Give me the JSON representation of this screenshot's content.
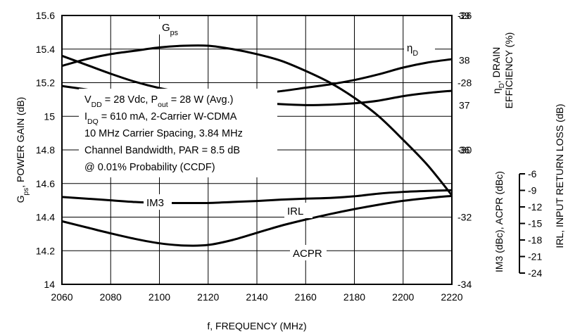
{
  "chart_data": {
    "type": "line",
    "x": [
      2060,
      2070,
      2080,
      2090,
      2100,
      2110,
      2120,
      2130,
      2140,
      2150,
      2160,
      2170,
      2180,
      2190,
      2200,
      2210,
      2220
    ],
    "xlabel": "f, FREQUENCY (MHz)",
    "xlim": [
      2060,
      2220
    ],
    "x_ticks": [
      "2060",
      "2080",
      "2100",
      "2120",
      "2140",
      "2160",
      "2180",
      "2200",
      "2220"
    ],
    "axes": {
      "left": {
        "label_parts": [
          {
            "t": "G",
            "s": "n"
          },
          {
            "t": "ps",
            "s": "sub"
          },
          {
            "t": ", POWER GAIN (dB)",
            "s": "n"
          }
        ],
        "range": [
          14,
          15.6
        ],
        "ticks": [
          "14",
          "14.2",
          "14.4",
          "14.6",
          "14.8",
          "15",
          "15.2",
          "15.4",
          "15.6"
        ]
      },
      "right_eta": {
        "label_line1_parts": [
          {
            "t": "η",
            "s": "n"
          },
          {
            "t": "D",
            "s": "sub"
          },
          {
            "t": ", DRAIN",
            "s": "n"
          }
        ],
        "label_line2": "EFFICIENCY (%)",
        "range": [
          33,
          39
        ],
        "ticks": [
          "36",
          "37",
          "38",
          "39"
        ]
      },
      "right_im3": {
        "label": "IM3 (dBc), ACPR (dBc)",
        "range": [
          -34,
          -26
        ],
        "ticks": [
          "-34",
          "-32",
          "-30",
          "-28",
          "-26"
        ]
      },
      "right_irl": {
        "label": "IRL, INPUT RETURN LOSS (dB)",
        "range": [
          -24,
          -6
        ],
        "ticks": [
          "-24",
          "-21",
          "-18",
          "-15",
          "-12",
          "-9",
          "-6"
        ]
      }
    },
    "series": [
      {
        "name": "Gps",
        "label_parts": [
          {
            "t": "G",
            "s": "n"
          },
          {
            "t": "ps",
            "s": "sub"
          }
        ],
        "axis": "left",
        "values": [
          15.3,
          15.34,
          15.37,
          15.39,
          15.41,
          15.42,
          15.42,
          15.4,
          15.37,
          15.33,
          15.27,
          15.2,
          15.11,
          15.0,
          14.86,
          14.71,
          14.53
        ]
      },
      {
        "name": "ηD",
        "label_parts": [
          {
            "t": "η",
            "s": "n"
          },
          {
            "t": "D",
            "s": "sub"
          }
        ],
        "axis": "right_eta",
        "values": [
          38.1,
          37.9,
          37.7,
          37.52,
          37.38,
          37.28,
          37.2,
          37.12,
          37.06,
          37.02,
          37.0,
          37.01,
          37.04,
          37.1,
          37.2,
          37.27,
          37.32
        ]
      },
      {
        "name": "IM3",
        "label_parts": [
          {
            "t": "IM3",
            "s": "n"
          }
        ],
        "axis": "right_im3",
        "values": [
          -28.1,
          -28.2,
          -28.3,
          -28.28,
          -28.25,
          -28.3,
          -28.35,
          -28.33,
          -28.32,
          -28.25,
          -28.15,
          -28.05,
          -27.92,
          -27.75,
          -27.55,
          -27.4,
          -27.3
        ]
      },
      {
        "name": "IRL",
        "label_parts": [
          {
            "t": "IRL",
            "s": "n"
          }
        ],
        "axis": "right_irl",
        "values": [
          -14.6,
          -15.7,
          -16.8,
          -17.8,
          -18.6,
          -19.0,
          -18.9,
          -18.0,
          -16.7,
          -15.4,
          -14.3,
          -13.3,
          -12.4,
          -11.6,
          -10.9,
          -10.4,
          -10.0
        ]
      },
      {
        "name": "ACPR",
        "label_parts": [
          {
            "t": "ACPR",
            "s": "n"
          }
        ],
        "axis": "right_im3",
        "values": [
          -31.4,
          -31.45,
          -31.5,
          -31.55,
          -31.58,
          -31.58,
          -31.58,
          -31.55,
          -31.52,
          -31.48,
          -31.45,
          -31.43,
          -31.38,
          -31.3,
          -31.25,
          -31.22,
          -31.2
        ]
      }
    ],
    "conditions": [
      [
        {
          "t": "V",
          "s": "n"
        },
        {
          "t": "DD",
          "s": "sub"
        },
        {
          "t": " = 28 Vdc, P",
          "s": "n"
        },
        {
          "t": "out",
          "s": "sub"
        },
        {
          "t": " = 28 W (Avg.)",
          "s": "n"
        }
      ],
      [
        {
          "t": "I",
          "s": "n"
        },
        {
          "t": "DQ",
          "s": "sub"
        },
        {
          "t": " = 610 mA, 2-Carrier W-CDMA",
          "s": "n"
        }
      ],
      [
        {
          "t": "10 MHz Carrier Spacing, 3.84 MHz",
          "s": "n"
        }
      ],
      [
        {
          "t": "Channel Bandwidth, PAR = 8.5 dB",
          "s": "n"
        }
      ],
      [
        {
          "t": "@ 0.01% Probability (CCDF)",
          "s": "n"
        }
      ]
    ],
    "grid": true,
    "legend": "none"
  }
}
